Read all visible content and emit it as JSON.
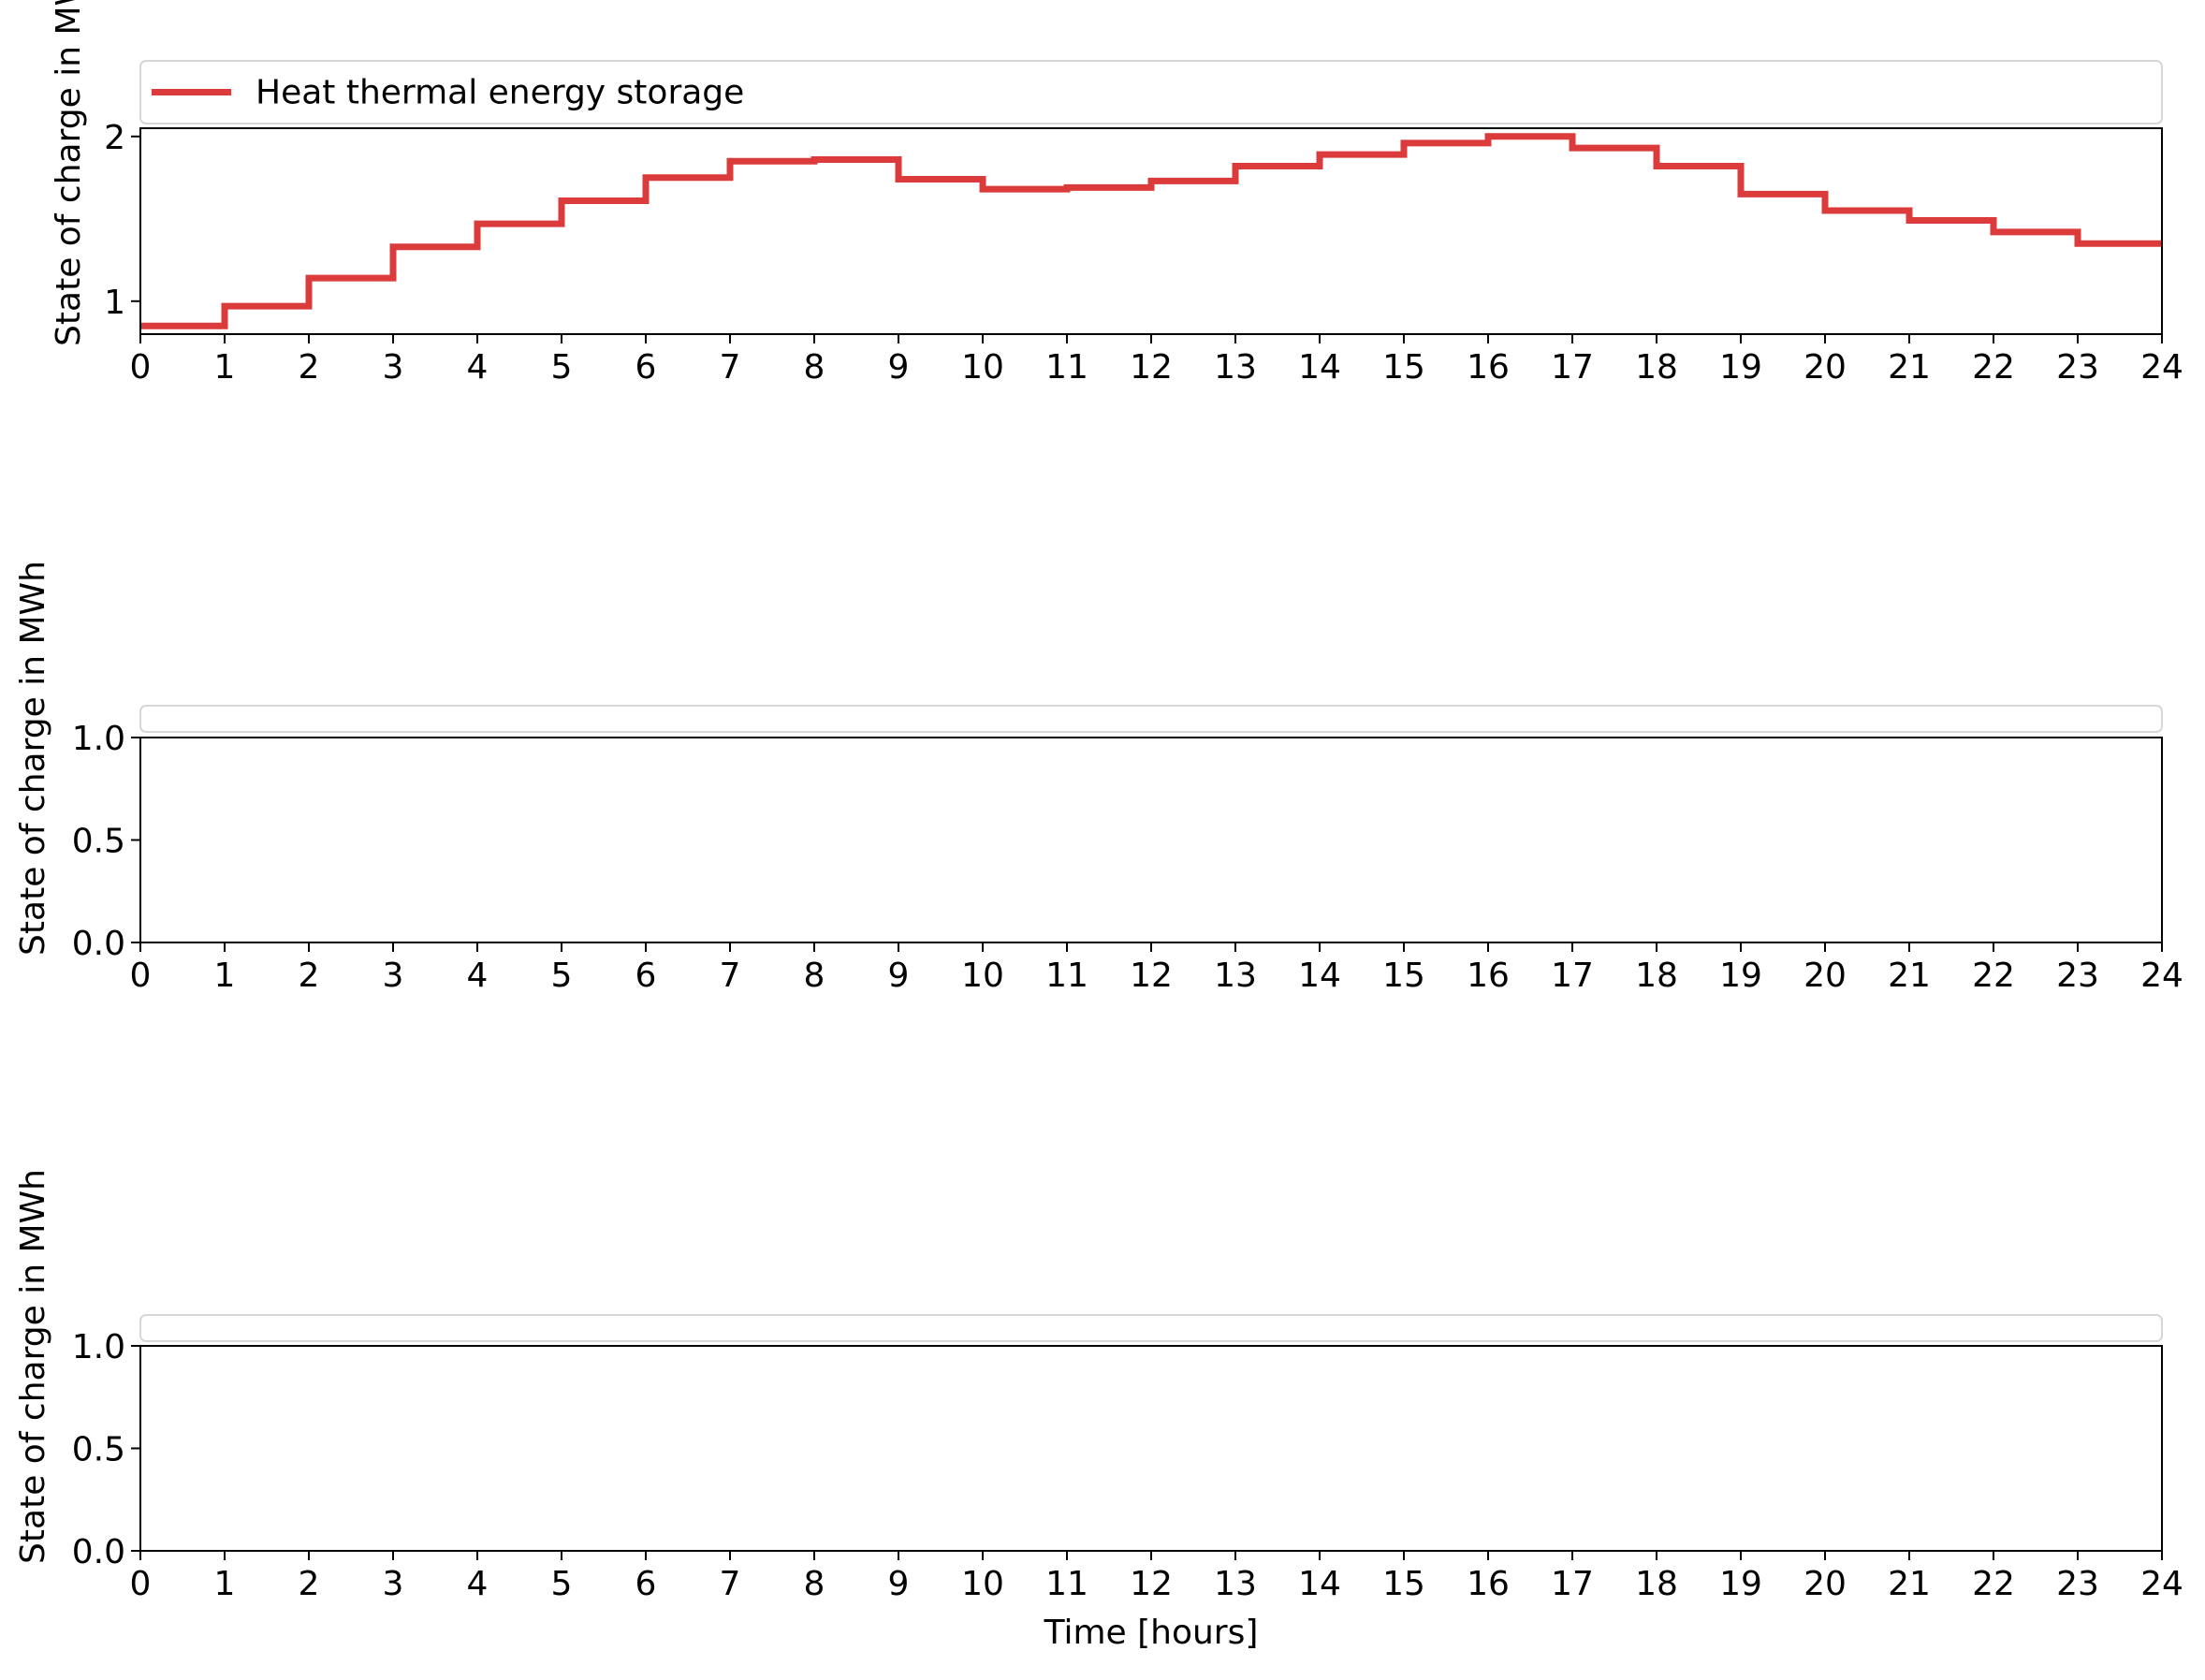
{
  "colors": {
    "series": "#db3b3b"
  },
  "chart_data": [
    {
      "type": "line",
      "step": "post",
      "xlabel": "",
      "ylabel": "State of charge in MWh",
      "xlim": [
        0,
        24
      ],
      "ylim": [
        0.8,
        2.05
      ],
      "xticks": [
        0,
        1,
        2,
        3,
        4,
        5,
        6,
        7,
        8,
        9,
        10,
        11,
        12,
        13,
        14,
        15,
        16,
        17,
        18,
        19,
        20,
        21,
        22,
        23,
        24
      ],
      "yticks": [
        1,
        2
      ],
      "yticklabels": [
        "1",
        "2"
      ],
      "legend": {
        "placement": "top"
      },
      "series": [
        {
          "name": "Heat thermal energy storage",
          "x": [
            0,
            1,
            2,
            3,
            4,
            5,
            6,
            7,
            8,
            9,
            10,
            11,
            12,
            13,
            14,
            15,
            16,
            17,
            18,
            19,
            20,
            21,
            22,
            23,
            24
          ],
          "values": [
            0.85,
            0.97,
            1.14,
            1.33,
            1.47,
            1.61,
            1.75,
            1.85,
            1.86,
            1.74,
            1.68,
            1.69,
            1.73,
            1.82,
            1.89,
            1.96,
            2.0,
            1.93,
            1.82,
            1.65,
            1.55,
            1.49,
            1.42,
            1.35,
            1.35
          ]
        }
      ]
    },
    {
      "type": "line",
      "xlabel": "",
      "ylabel": "State of charge in MWh",
      "xlim": [
        0,
        24
      ],
      "ylim": [
        0,
        1
      ],
      "xticks": [
        0,
        1,
        2,
        3,
        4,
        5,
        6,
        7,
        8,
        9,
        10,
        11,
        12,
        13,
        14,
        15,
        16,
        17,
        18,
        19,
        20,
        21,
        22,
        23,
        24
      ],
      "yticks": [
        0,
        0.5,
        1
      ],
      "yticklabels": [
        "0.0",
        "0.5",
        "1.0"
      ],
      "legend": {
        "placement": "top"
      },
      "series": []
    },
    {
      "type": "line",
      "xlabel": "Time [hours]",
      "ylabel": "State of charge in MWh",
      "xlim": [
        0,
        24
      ],
      "ylim": [
        0,
        1
      ],
      "xticks": [
        0,
        1,
        2,
        3,
        4,
        5,
        6,
        7,
        8,
        9,
        10,
        11,
        12,
        13,
        14,
        15,
        16,
        17,
        18,
        19,
        20,
        21,
        22,
        23,
        24
      ],
      "yticks": [
        0,
        0.5,
        1
      ],
      "yticklabels": [
        "0.0",
        "0.5",
        "1.0"
      ],
      "legend": {
        "placement": "top"
      },
      "series": []
    }
  ]
}
